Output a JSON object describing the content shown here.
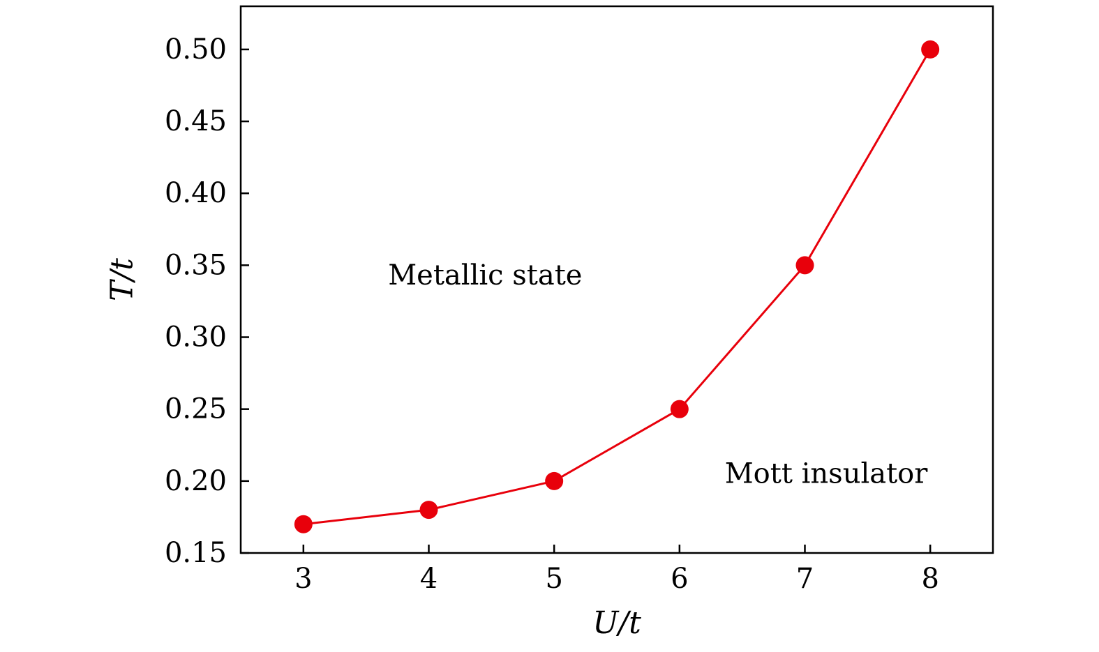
{
  "chart_data": {
    "type": "line",
    "x": [
      3,
      4,
      5,
      6,
      7,
      8
    ],
    "series": [
      {
        "values": [
          0.17,
          0.18,
          0.2,
          0.25,
          0.35,
          0.5
        ],
        "color": "#e8000b",
        "marker": "circle"
      }
    ],
    "xlabel": "U/t",
    "ylabel": "T/t",
    "xlim": [
      2.5,
      8.5
    ],
    "ylim": [
      0.15,
      0.53
    ],
    "x_ticks": [
      3,
      4,
      5,
      6,
      7,
      8
    ],
    "x_tick_labels": [
      "3",
      "4",
      "5",
      "6",
      "7",
      "8"
    ],
    "y_ticks": [
      0.15,
      0.2,
      0.25,
      0.3,
      0.35,
      0.4,
      0.45,
      0.5
    ],
    "y_tick_labels": [
      "0.15",
      "0.20",
      "0.25",
      "0.30",
      "0.35",
      "0.40",
      "0.45",
      "0.50"
    ],
    "grid": false,
    "annotations": [
      {
        "text": "Metallic state",
        "x": 4.45,
        "y": 0.343
      },
      {
        "text": "Mott insulator",
        "x": 7.17,
        "y": 0.205
      }
    ]
  }
}
